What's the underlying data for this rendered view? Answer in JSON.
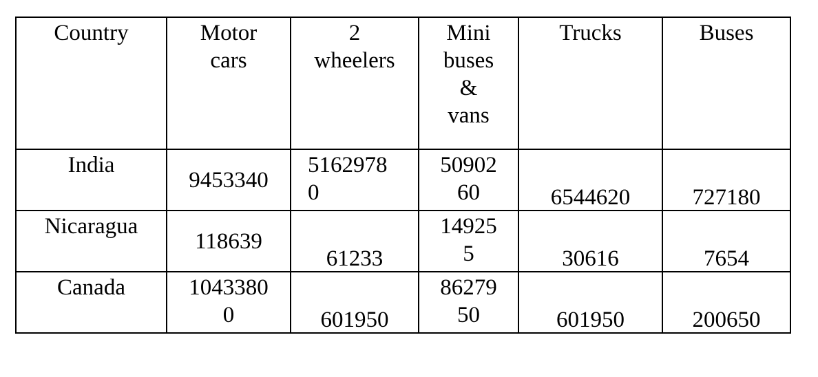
{
  "table": {
    "headers": [
      "Country",
      "Motor\ncars",
      "2\nwheelers",
      "Mini\nbuses\n&\nvans",
      "Trucks",
      "Buses"
    ],
    "rows": [
      {
        "country": "India",
        "motor_cars": "9453340",
        "two_wheelers_line1": "5162978",
        "two_wheelers_line2": "0",
        "mini_buses_line1": "50902",
        "mini_buses_line2": "60",
        "trucks": "6544620",
        "buses": "727180"
      },
      {
        "country": "Nicaragua",
        "motor_cars": "118639",
        "two_wheelers": "61233",
        "mini_buses_line1": "14925",
        "mini_buses_line2": "5",
        "trucks": "30616",
        "buses": "7654"
      },
      {
        "country": "Canada",
        "motor_cars_line1": "1043380",
        "motor_cars_line2": "0",
        "two_wheelers": "601950",
        "mini_buses_line1": "86279",
        "mini_buses_line2": "50",
        "trucks": "601950",
        "buses": "200650"
      }
    ]
  }
}
